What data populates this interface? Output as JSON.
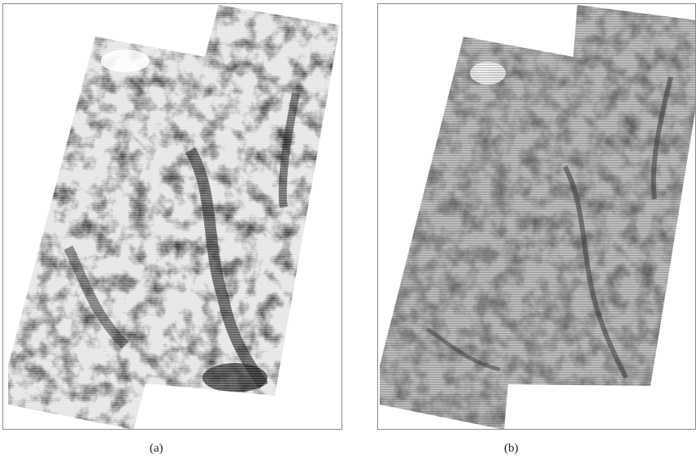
{
  "figure": {
    "panels": [
      {
        "caption": "(a)",
        "tone": "high-contrast",
        "base_color": "#e6e6e6",
        "dark_color": "#1e1e1e"
      },
      {
        "caption": "(b)",
        "tone": "low-contrast-striped",
        "base_color": "#bdbdbd",
        "dark_color": "#3a3a3a"
      }
    ]
  }
}
